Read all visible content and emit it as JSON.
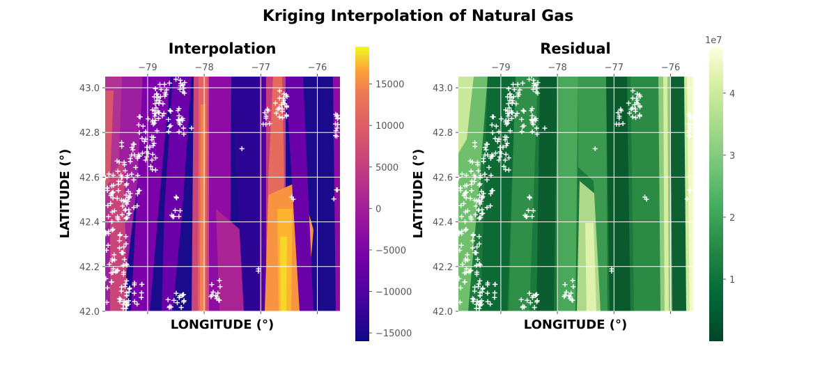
{
  "figure": {
    "title": "Kriging Interpolation of Natural Gas"
  },
  "chart_data": [
    {
      "type": "heatmap",
      "title": "Interpolation",
      "xlabel": "LONGITUDE (°)",
      "ylabel": "LATITUDE (°)",
      "xlim": [
        -79.75,
        -75.6
      ],
      "ylim": [
        42.0,
        43.05
      ],
      "x_ticks": [
        -79,
        -78,
        -77,
        -76
      ],
      "x_tick_labels": [
        "−79",
        "−78",
        "−77",
        "−76"
      ],
      "y_ticks": [
        42.0,
        42.2,
        42.4,
        42.6,
        42.8,
        43.0
      ],
      "y_tick_labels": [
        "42.0",
        "42.2",
        "42.4",
        "42.6",
        "42.8",
        "43.0"
      ],
      "x_ticks_position": "top",
      "grid": true,
      "colormap": "plasma",
      "colorbar": {
        "range": [
          -16000,
          19500
        ],
        "ticks": [
          15000,
          10000,
          5000,
          0,
          -5000,
          -10000,
          -15000
        ],
        "tick_labels": [
          "15000",
          "10000",
          "5000",
          "0",
          "−5000",
          "−10000",
          "−15000"
        ],
        "position": "right"
      },
      "well_marker": "+",
      "well_marker_color": "#ffffff"
    },
    {
      "type": "heatmap",
      "title": "Residual",
      "xlabel": "LONGITUDE (°)",
      "ylabel": "LATITUDE (°)",
      "xlim": [
        -79.75,
        -75.6
      ],
      "ylim": [
        42.0,
        43.05
      ],
      "x_ticks": [
        -79,
        -78,
        -77,
        -76
      ],
      "x_tick_labels": [
        "−79",
        "−78",
        "−77",
        "−76"
      ],
      "y_ticks": [
        42.0,
        42.2,
        42.4,
        42.6,
        42.8,
        43.0
      ],
      "y_tick_labels": [
        "42.0",
        "42.2",
        "42.4",
        "42.6",
        "42.8",
        "43.0"
      ],
      "x_ticks_position": "top",
      "grid": true,
      "colormap": "YlGn_r",
      "colorbar": {
        "range": [
          0,
          47500000
        ],
        "ticks": [
          10000000,
          20000000,
          30000000,
          40000000
        ],
        "tick_labels": [
          "1",
          "2",
          "3",
          "4"
        ],
        "offset_label": "1e7",
        "position": "right"
      },
      "well_marker": "+",
      "well_marker_color": "#ffffff"
    }
  ]
}
